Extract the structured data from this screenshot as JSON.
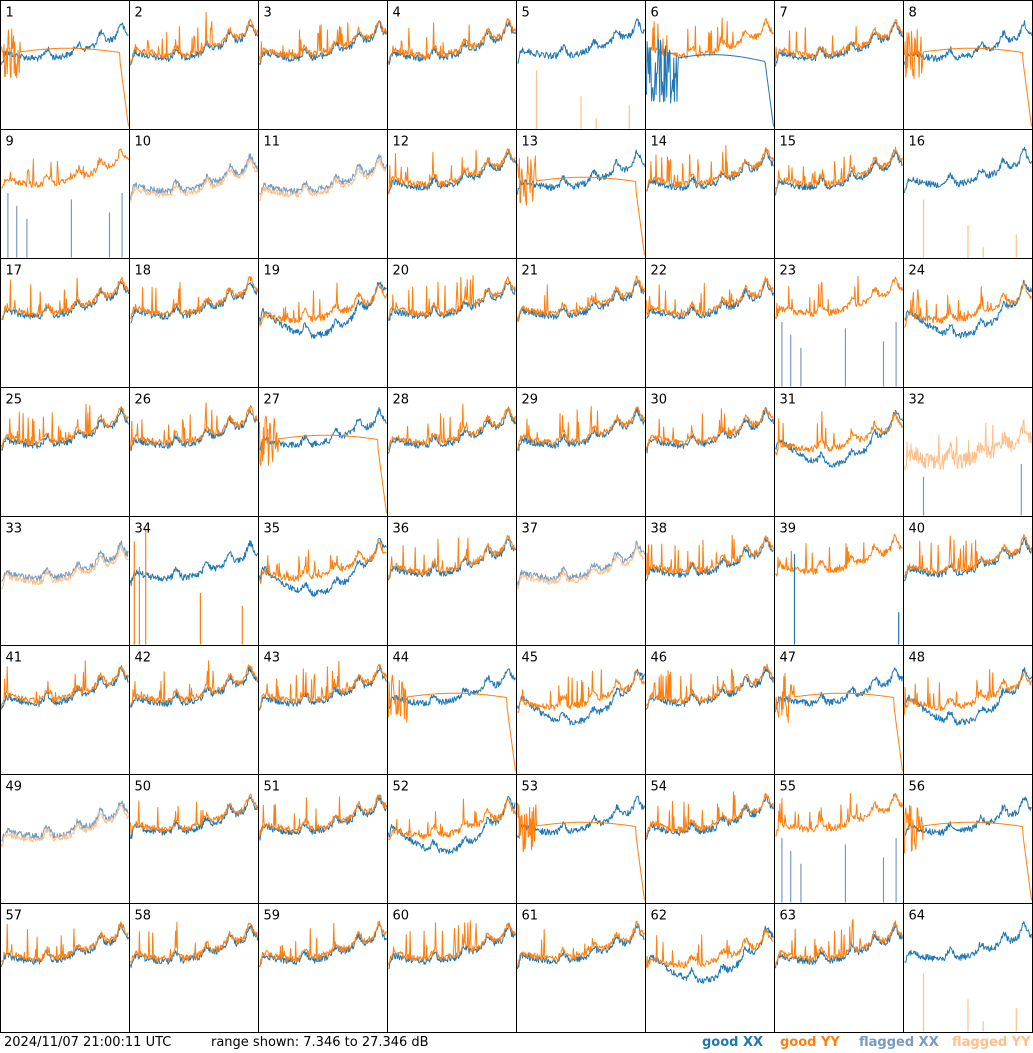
{
  "chart_data": {
    "type": "line",
    "grid": {
      "rows": 8,
      "cols": 8
    },
    "panels": [
      1,
      2,
      3,
      4,
      5,
      6,
      7,
      8,
      9,
      10,
      11,
      12,
      13,
      14,
      15,
      16,
      17,
      18,
      19,
      20,
      21,
      22,
      23,
      24,
      25,
      26,
      27,
      28,
      29,
      30,
      31,
      32,
      33,
      34,
      35,
      36,
      37,
      38,
      39,
      40,
      41,
      42,
      43,
      44,
      45,
      46,
      47,
      48,
      49,
      50,
      51,
      52,
      53,
      54,
      55,
      56,
      57,
      58,
      59,
      60,
      61,
      62,
      63,
      64
    ],
    "ylim_db": [
      7.346,
      27.346
    ],
    "series": [
      {
        "name": "good XX",
        "color": "#1f77b4"
      },
      {
        "name": "good YY",
        "color": "#ff7f0e"
      },
      {
        "name": "flagged XX",
        "color": "#7a9bbb"
      },
      {
        "name": "flagged YY",
        "color": "#ffbf8a"
      }
    ],
    "panel_style": {
      "normal": [
        2,
        3,
        4,
        7,
        12,
        14,
        15,
        17,
        18,
        20,
        21,
        22,
        25,
        26,
        28,
        29,
        30,
        36,
        38,
        40,
        41,
        42,
        43,
        46,
        50,
        51,
        54,
        57,
        58,
        59,
        60,
        61,
        63
      ],
      "yy_rolloff": [
        1,
        8,
        13,
        27,
        44,
        47,
        53,
        56
      ],
      "xx_rolloff": [
        6
      ],
      "yy_flagged_spikes": [
        5,
        16,
        64
      ],
      "xx_flagged_spikes": [
        9,
        23,
        55
      ],
      "yy_spikes": [
        34
      ],
      "xx_spike_single": [
        39
      ],
      "both_flagged": [
        10,
        11,
        33,
        37,
        49
      ],
      "all_flagged_yy": [
        32
      ],
      "xx_dip": [
        19,
        24,
        31,
        35,
        45,
        48,
        52,
        62
      ]
    }
  },
  "footer": {
    "timestamp": "2024/11/07 21:00:11 UTC",
    "range": "range shown: 7.346 to 27.346 dB",
    "legend": {
      "good_xx": "good XX",
      "good_yy": "good YY",
      "flagged_xx": "flagged XX",
      "flagged_yy": "flagged YY"
    }
  }
}
